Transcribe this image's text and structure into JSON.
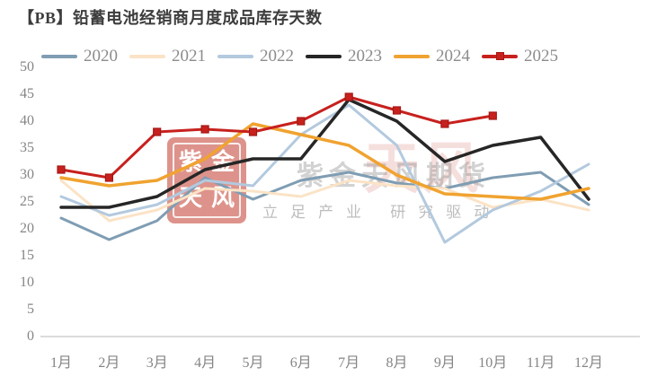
{
  "page": {
    "title": "【PB】铅蓄电池经销商月度成品库存天数"
  },
  "watermark": {
    "seal_chars": [
      "紫",
      "金",
      "天",
      "风"
    ],
    "red_text": "天风",
    "gray_text": "紫金天风期货",
    "slogan": "立足产业  研究驱动"
  },
  "chart_data": {
    "type": "line",
    "title": "【PB】铅蓄电池经销商月度成品库存天数",
    "categories": [
      "1月",
      "2月",
      "3月",
      "4月",
      "5月",
      "6月",
      "7月",
      "8月",
      "9月",
      "10月",
      "11月",
      "12月"
    ],
    "xlabel": "",
    "ylabel": "",
    "ylim": [
      0,
      50
    ],
    "yticks": [
      0,
      5,
      10,
      15,
      20,
      25,
      30,
      35,
      40,
      45,
      50
    ],
    "grid": false,
    "legend_position": "top",
    "axis_color": "#d0d0d0",
    "label_color": "#858585",
    "series": [
      {
        "name": "2020",
        "color": "#7f9db3",
        "width": 3,
        "marker": null,
        "values": [
          22,
          18,
          21.5,
          29.5,
          25.5,
          29,
          30.5,
          28.5,
          27.5,
          29.5,
          30.5,
          24.5
        ]
      },
      {
        "name": "2021",
        "color": "#fbe3c6",
        "width": 3,
        "marker": null,
        "values": [
          29,
          21.5,
          23.5,
          27.5,
          27,
          26,
          29,
          28,
          27.5,
          24,
          25.5,
          23.5
        ]
      },
      {
        "name": "2022",
        "color": "#b3c9de",
        "width": 3,
        "marker": null,
        "values": [
          26,
          22.5,
          24.5,
          29,
          28,
          37.5,
          43,
          35.5,
          17.5,
          23.5,
          27,
          32
        ]
      },
      {
        "name": "2023",
        "color": "#262626",
        "width": 3.5,
        "marker": null,
        "values": [
          24,
          24,
          26,
          31,
          33,
          33,
          44,
          40,
          32.5,
          35.5,
          37,
          25.5
        ]
      },
      {
        "name": "2024",
        "color": "#f0a330",
        "width": 3.5,
        "marker": null,
        "values": [
          29.5,
          28,
          29,
          33,
          39.5,
          37.5,
          35.5,
          30,
          26.5,
          26,
          25.5,
          27.5
        ]
      },
      {
        "name": "2025",
        "color": "#c7211e",
        "width": 3,
        "marker": "square",
        "marker_border": "#a31815",
        "values": [
          31,
          29.5,
          38,
          38.5,
          38,
          40,
          44.5,
          42,
          39.5,
          41,
          null,
          null
        ]
      }
    ]
  }
}
